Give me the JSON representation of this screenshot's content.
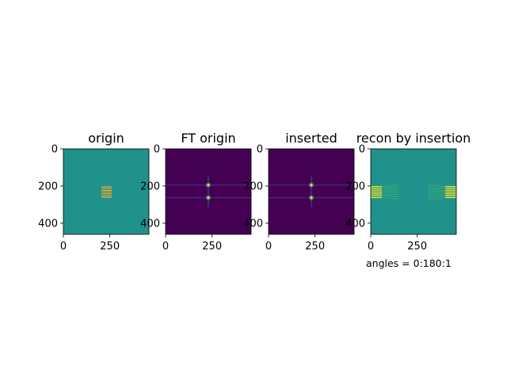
{
  "chart_data": [
    {
      "type": "heatmap",
      "title": "origin",
      "colormap": "viridis",
      "xlim": [
        0,
        460
      ],
      "ylim": [
        460,
        0
      ],
      "xticks": [
        0,
        250
      ],
      "yticks": [
        0,
        200,
        400
      ],
      "background": "#21918c",
      "features": [
        {
          "kind": "stripes",
          "x": [
            205,
            260
          ],
          "y": [
            203,
            262
          ],
          "count": 7,
          "color": "#fde725"
        }
      ]
    },
    {
      "type": "heatmap",
      "title": "FT origin",
      "colormap": "viridis",
      "xlim": [
        0,
        460
      ],
      "ylim": [
        460,
        0
      ],
      "xticks": [
        0,
        250
      ],
      "yticks": [
        0,
        200,
        400
      ],
      "background": "#440154",
      "features": [
        {
          "kind": "peak",
          "x": 230,
          "y": 195
        },
        {
          "kind": "peak",
          "x": 230,
          "y": 263
        }
      ]
    },
    {
      "type": "heatmap",
      "title": "inserted",
      "colormap": "viridis",
      "xlim": [
        0,
        460
      ],
      "ylim": [
        460,
        0
      ],
      "xticks": [
        0,
        250
      ],
      "yticks": [
        0,
        200,
        400
      ],
      "background": "#440154",
      "features": [
        {
          "kind": "peak",
          "x": 230,
          "y": 195
        },
        {
          "kind": "peak",
          "x": 230,
          "y": 263
        }
      ]
    },
    {
      "type": "heatmap",
      "title": "recon by insertion",
      "colormap": "viridis",
      "xlim": [
        0,
        460
      ],
      "ylim": [
        460,
        0
      ],
      "xticks": [
        0,
        250
      ],
      "yticks": [
        0,
        200,
        400
      ],
      "background": "#21918c",
      "features": [
        {
          "kind": "edge-stripes",
          "side": "left",
          "y": [
            203,
            262
          ],
          "count": 7
        },
        {
          "kind": "edge-stripes",
          "side": "right",
          "y": [
            203,
            262
          ],
          "count": 7
        }
      ],
      "annotation": "angles = 0:180:1"
    }
  ]
}
